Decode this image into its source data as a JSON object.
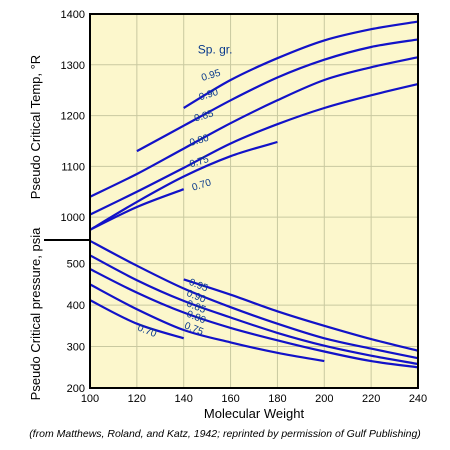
{
  "chart_data": [
    {
      "type": "line",
      "title": "",
      "xlabel": "Molecular Weight",
      "ylabel": "Pseudo Critical Temp, °R",
      "xlim": [
        100,
        240
      ],
      "ylim": [
        900,
        1400
      ],
      "x_ticks": [
        100,
        120,
        140,
        160,
        180,
        200,
        220,
        240
      ],
      "y_ticks": [
        1000,
        1100,
        1200,
        1300,
        1400
      ],
      "grid": true,
      "legend_title": "Sp. gr.",
      "series": [
        {
          "name": "0.95",
          "x": [
            140,
            160,
            180,
            200,
            220,
            240
          ],
          "y": [
            1215,
            1270,
            1313,
            1348,
            1370,
            1385
          ]
        },
        {
          "name": "0.90",
          "x": [
            120,
            140,
            160,
            180,
            200,
            220,
            240
          ],
          "y": [
            1130,
            1180,
            1230,
            1275,
            1310,
            1335,
            1350
          ]
        },
        {
          "name": "0.85",
          "x": [
            100,
            120,
            140,
            160,
            180,
            200,
            220,
            240
          ],
          "y": [
            1040,
            1085,
            1135,
            1185,
            1230,
            1270,
            1295,
            1315
          ]
        },
        {
          "name": "0.80",
          "x": [
            100,
            120,
            140,
            160,
            180,
            200,
            220,
            240
          ],
          "y": [
            1005,
            1050,
            1097,
            1145,
            1183,
            1215,
            1240,
            1262
          ]
        },
        {
          "name": "0.75",
          "x": [
            100,
            120,
            140,
            160,
            180
          ],
          "y": [
            975,
            1030,
            1080,
            1120,
            1148
          ]
        },
        {
          "name": "0.70",
          "x": [
            100,
            120,
            140
          ],
          "y": [
            975,
            1020,
            1055
          ]
        }
      ]
    },
    {
      "type": "line",
      "title": "",
      "xlabel": "Molecular Weight",
      "ylabel": "Pseudo Critical pressure, psia",
      "xlim": [
        100,
        240
      ],
      "ylim": [
        200,
        570
      ],
      "x_ticks": [
        100,
        120,
        140,
        160,
        180,
        200,
        220,
        240
      ],
      "y_ticks": [
        200,
        300,
        400,
        500
      ],
      "grid": true,
      "series": [
        {
          "name": "0.95",
          "x": [
            140,
            160,
            180,
            200,
            220,
            240
          ],
          "y": [
            462,
            425,
            385,
            350,
            318,
            290
          ]
        },
        {
          "name": "0.90",
          "x": [
            100,
            120,
            140,
            160,
            180,
            200,
            220,
            240
          ],
          "y": [
            555,
            495,
            440,
            395,
            355,
            320,
            295,
            272
          ]
        },
        {
          "name": "0.85",
          "x": [
            100,
            120,
            140,
            160,
            180,
            200,
            220,
            240
          ],
          "y": [
            520,
            460,
            410,
            370,
            333,
            302,
            278,
            258
          ]
        },
        {
          "name": "0.80",
          "x": [
            100,
            120,
            140,
            160,
            180,
            200,
            220,
            240
          ],
          "y": [
            487,
            430,
            382,
            345,
            315,
            288,
            265,
            250
          ]
        },
        {
          "name": "0.75",
          "x": [
            100,
            120,
            140,
            160,
            180,
            200
          ],
          "y": [
            450,
            390,
            340,
            310,
            285,
            265
          ]
        },
        {
          "name": "0.70",
          "x": [
            100,
            120,
            140
          ],
          "y": [
            412,
            355,
            320
          ]
        }
      ]
    }
  ],
  "caption": "(from Matthews, Roland, and Katz, 1942; reprinted by permission of Gulf Publishing)",
  "colors": {
    "plot_bg": "#fcf7cc",
    "curve": "#1212c8",
    "label": "#0a3a8c",
    "grid": "#c9c9a0"
  }
}
